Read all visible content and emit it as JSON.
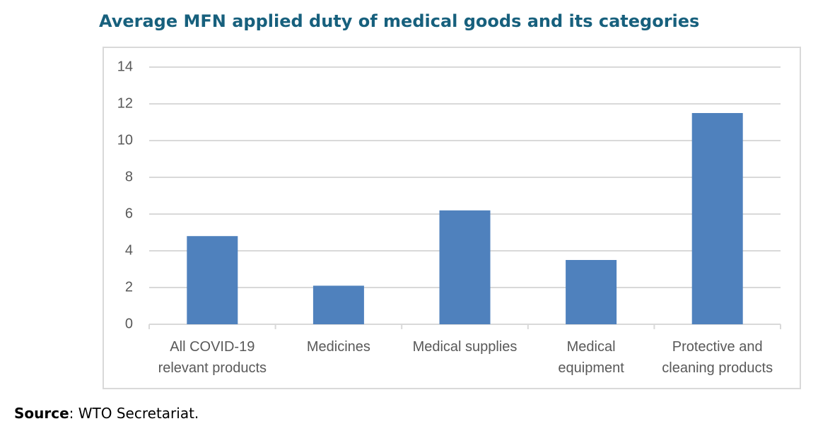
{
  "chart_data": {
    "type": "bar",
    "title": "Average MFN applied duty of medical goods and its categories",
    "categories": [
      "All COVID-19\nrelevant products",
      "Medicines",
      "Medical supplies",
      "Medical\nequipment",
      "Protective and\ncleaning products"
    ],
    "values": [
      4.8,
      2.1,
      6.2,
      3.5,
      11.5
    ],
    "color": "#4f81bd",
    "ylim": [
      0,
      14
    ],
    "yticks": [
      0,
      2,
      4,
      6,
      8,
      10,
      12,
      14
    ],
    "grid": true
  },
  "source_label": "Source",
  "source": ": WTO Secretariat."
}
